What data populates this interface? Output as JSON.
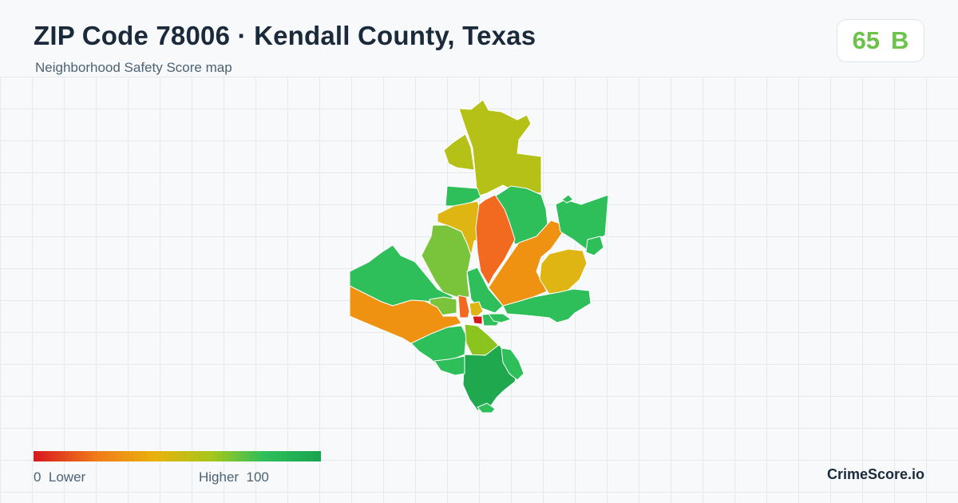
{
  "header": {
    "title": "ZIP Code 78006 · Kendall County, Texas",
    "subtitle": "Neighborhood Safety Score map"
  },
  "score": {
    "value": "65",
    "grade": "B",
    "color": "#6cc24a"
  },
  "legend": {
    "low_label": "0  Lower",
    "high_label": "Higher  100",
    "colors": [
      "#d7191c",
      "#f07b1b",
      "#e9b20c",
      "#a6c61c",
      "#2fbf5a",
      "#1aa350"
    ]
  },
  "brand": "CrimeScore.io"
}
